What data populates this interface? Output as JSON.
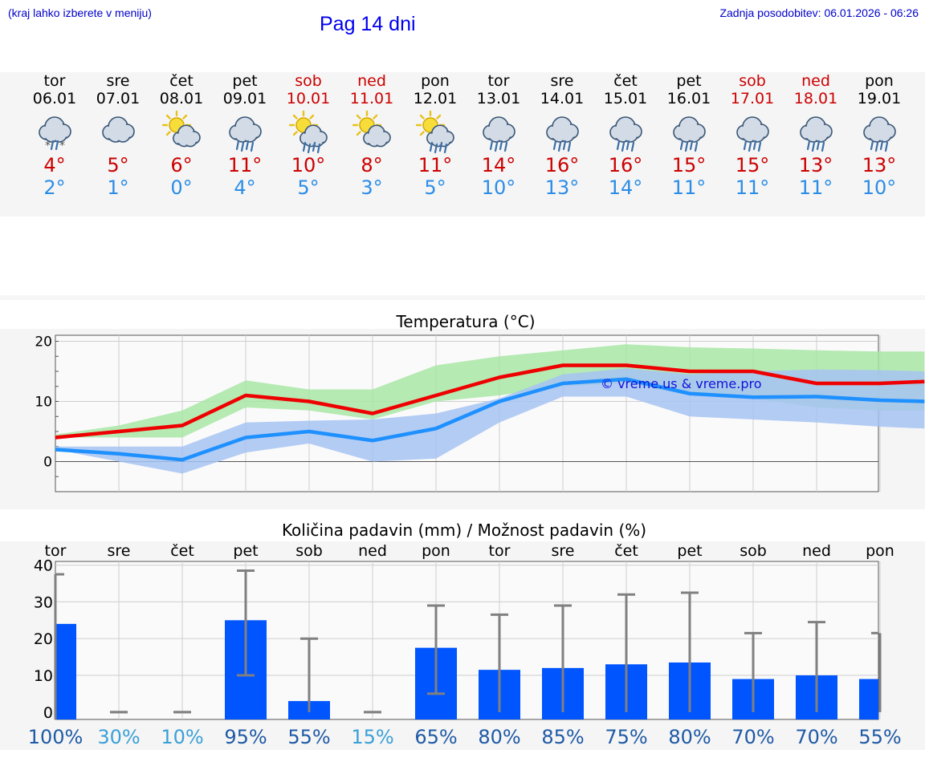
{
  "header": {
    "left_note": "(kraj lahko izberete v meniju)",
    "title": "Pag 14 dni",
    "updated": "Zadnja posodobitev: 06.01.2026 - 06:26"
  },
  "days": [
    {
      "name": "tor",
      "date": "06.01",
      "weekend": false,
      "icon": "sleet-icon",
      "max": "4°",
      "min": "2°"
    },
    {
      "name": "sre",
      "date": "07.01",
      "weekend": false,
      "icon": "cloudy-icon",
      "max": "5°",
      "min": "1°"
    },
    {
      "name": "čet",
      "date": "08.01",
      "weekend": false,
      "icon": "sun-cloud-icon",
      "max": "6°",
      "min": "0°"
    },
    {
      "name": "pet",
      "date": "09.01",
      "weekend": false,
      "icon": "rain-icon",
      "max": "11°",
      "min": "4°"
    },
    {
      "name": "sob",
      "date": "10.01",
      "weekend": true,
      "icon": "sun-cloud-rain-icon",
      "max": "10°",
      "min": "5°"
    },
    {
      "name": "ned",
      "date": "11.01",
      "weekend": true,
      "icon": "sun-cloud-icon",
      "max": "8°",
      "min": "3°"
    },
    {
      "name": "pon",
      "date": "12.01",
      "weekend": false,
      "icon": "sun-cloud-rain-icon",
      "max": "11°",
      "min": "5°"
    },
    {
      "name": "tor",
      "date": "13.01",
      "weekend": false,
      "icon": "rain-icon",
      "max": "14°",
      "min": "10°"
    },
    {
      "name": "sre",
      "date": "14.01",
      "weekend": false,
      "icon": "rain-icon",
      "max": "16°",
      "min": "13°"
    },
    {
      "name": "čet",
      "date": "15.01",
      "weekend": false,
      "icon": "rain-icon",
      "max": "16°",
      "min": "14°"
    },
    {
      "name": "pet",
      "date": "16.01",
      "weekend": false,
      "icon": "rain-icon",
      "max": "15°",
      "min": "11°"
    },
    {
      "name": "sob",
      "date": "17.01",
      "weekend": true,
      "icon": "rain-icon",
      "max": "15°",
      "min": "11°"
    },
    {
      "name": "ned",
      "date": "18.01",
      "weekend": true,
      "icon": "rain-icon",
      "max": "13°",
      "min": "11°"
    },
    {
      "name": "pon",
      "date": "19.01",
      "weekend": false,
      "icon": "rain-icon",
      "max": "13°",
      "min": "10°"
    }
  ],
  "colors": {
    "max_line": "#ee0000",
    "min_line": "#1e90ff",
    "max_band": "#a8e6a4",
    "min_band": "#a6c3f2",
    "overlap_band": "#74bba0",
    "bar": "#0055ff",
    "whisker": "#808080",
    "prob_dark": "#1f5aa6",
    "prob_light": "#3aa0d8"
  },
  "chart_data": [
    {
      "type": "line",
      "title": "Temperatura (°C)",
      "ylim": [
        -5,
        21
      ],
      "yticks": [
        "20",
        "10",
        "0"
      ],
      "watermark": "© vreme.us & vreme.pro",
      "x": [
        0,
        1,
        2,
        3,
        4,
        5,
        6,
        7,
        8,
        9,
        10,
        11,
        12,
        13
      ],
      "x_extent": [
        0,
        13.7
      ],
      "series": [
        {
          "name": "max",
          "values": [
            4,
            5,
            6,
            11,
            10,
            8,
            11,
            14,
            16,
            16,
            15,
            15,
            13,
            13,
            13.3
          ],
          "x": [
            0,
            1,
            2,
            3,
            4,
            5,
            6,
            7,
            8,
            9,
            10,
            11,
            12,
            13,
            13.7
          ],
          "band_low": [
            4,
            4,
            4,
            9,
            8.5,
            7,
            10,
            11,
            12.5,
            13,
            11,
            10.5,
            9,
            8.5,
            8.5
          ],
          "band_high": [
            4.5,
            6,
            8.5,
            13.5,
            12,
            12,
            16,
            17.5,
            18.5,
            19.5,
            19,
            18.8,
            18.5,
            18.3,
            18.3
          ]
        },
        {
          "name": "min",
          "values": [
            2,
            1.3,
            0.3,
            4,
            5,
            3.5,
            5.5,
            10,
            13,
            13.7,
            11.3,
            10.7,
            10.8,
            10.2,
            10
          ],
          "x": [
            0,
            1,
            2,
            3,
            4,
            5,
            6,
            7,
            8,
            9,
            10,
            11,
            12,
            13,
            13.7
          ],
          "band_low": [
            2,
            0,
            -2,
            1.5,
            3,
            0,
            0.5,
            6.5,
            10.8,
            10.8,
            7.5,
            7,
            6.5,
            5.8,
            5.5
          ],
          "band_high": [
            2.5,
            2.5,
            2.5,
            6.5,
            6.8,
            7,
            8,
            10.5,
            14.5,
            15.5,
            14.5,
            15,
            15.3,
            15.2,
            15
          ]
        }
      ]
    },
    {
      "type": "bar",
      "title": "Količina padavin (mm) / Možnost padavin (%)",
      "ylim": [
        -2,
        41
      ],
      "yticks": [
        "40",
        "30",
        "20",
        "10",
        "0"
      ],
      "categories": [
        "tor",
        "sre",
        "čet",
        "pet",
        "sob",
        "ned",
        "pon",
        "tor",
        "sre",
        "čet",
        "pet",
        "sob",
        "ned",
        "pon"
      ],
      "values": [
        24,
        0,
        0,
        25,
        3,
        0,
        17.5,
        11.5,
        12,
        13,
        13.5,
        9,
        10,
        9
      ],
      "error_low": [
        null,
        0,
        0,
        10,
        0,
        0,
        5,
        0,
        0,
        0,
        0,
        0,
        0,
        0
      ],
      "error_high": [
        37.5,
        0,
        0,
        38.5,
        20,
        0,
        29,
        26.5,
        29,
        32,
        32.5,
        21.5,
        24.5,
        21.5
      ],
      "probability": [
        "100%",
        "30%",
        "10%",
        "95%",
        "55%",
        "15%",
        "65%",
        "80%",
        "85%",
        "75%",
        "80%",
        "70%",
        "70%",
        "55%"
      ],
      "probability_light": [
        false,
        true,
        true,
        false,
        false,
        true,
        false,
        false,
        false,
        false,
        false,
        false,
        false,
        false
      ]
    }
  ]
}
